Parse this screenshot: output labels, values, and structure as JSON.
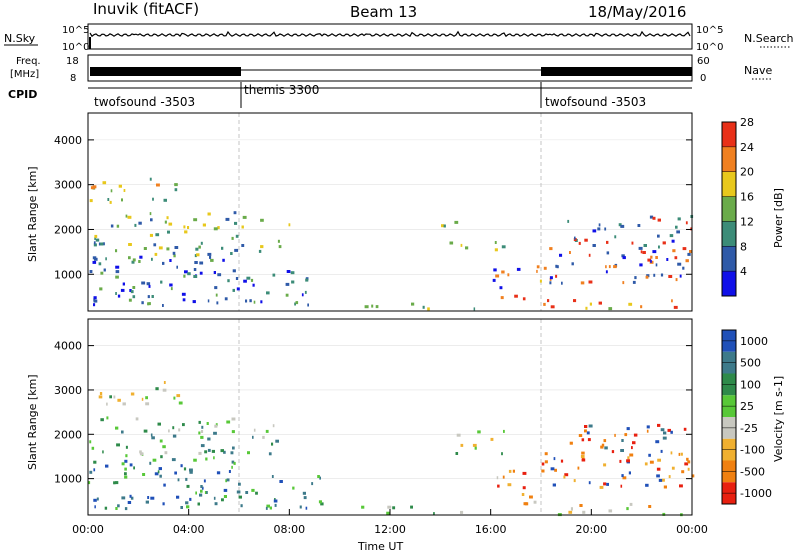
{
  "header": {
    "station": "Inuvik (fitACF)",
    "beam": "Beam 13",
    "date": "18/May/2016"
  },
  "top_panels": {
    "nsky_label": "N.Sky",
    "nsearch_label": "N.Search",
    "nsky_ticks": [
      "10^5",
      "10^0"
    ],
    "nsearch_ticks": [
      "10^5",
      "10^0"
    ],
    "freq_label": "Freq.",
    "freq_unit": "[MHz]",
    "freq_ticks": [
      "18",
      "8"
    ],
    "nave_label": "Nave",
    "nave_ticks": [
      "60",
      "0"
    ],
    "cpid_label": "CPID",
    "cpid_segments": [
      {
        "label": "twofsound -3503",
        "start": 0,
        "end": 6
      },
      {
        "label": "themis 3300",
        "start": 6,
        "end": 18
      },
      {
        "label": "twofsound -3503",
        "start": 18,
        "end": 24
      }
    ]
  },
  "chart_data": [
    {
      "type": "heatmap",
      "title": "Power",
      "ylabel": "Slant Range [km]",
      "xlim": [
        0,
        24
      ],
      "ylim": [
        180,
        4600
      ],
      "yticks": [
        "1000",
        "2000",
        "3000",
        "4000"
      ],
      "colorbar_label": "Power [dB]",
      "colorbar_ticks": [
        "4",
        "8",
        "12",
        "16",
        "20",
        "24",
        "28"
      ],
      "colorbar_colors": [
        "#1010e8",
        "#2f5aa8",
        "#3c8c78",
        "#6aab4a",
        "#e8c81c",
        "#f08020",
        "#e83018"
      ]
    },
    {
      "type": "heatmap",
      "title": "Velocity",
      "ylabel": "Slant Range [km]",
      "xlabel": "Time UT",
      "xlim": [
        0,
        24
      ],
      "ylim": [
        180,
        4600
      ],
      "xticks": [
        "00:00",
        "04:00",
        "08:00",
        "12:00",
        "16:00",
        "20:00",
        "00:00"
      ],
      "yticks": [
        "1000",
        "2000",
        "3000",
        "4000"
      ],
      "colorbar_label": "Velocity [m s-1]",
      "colorbar_ticks": [
        "1000",
        "500",
        "100",
        "25",
        "-25",
        "-100",
        "-500",
        "-1000"
      ],
      "colorbar_colors": [
        "#2050b8",
        "#3d7a8a",
        "#2e8a4a",
        "#58c838",
        "#c8c8c0",
        "#f0b030",
        "#f08010",
        "#e82010"
      ]
    }
  ],
  "colors": {
    "grid": "#c8c8c8",
    "axis": "#000000"
  }
}
